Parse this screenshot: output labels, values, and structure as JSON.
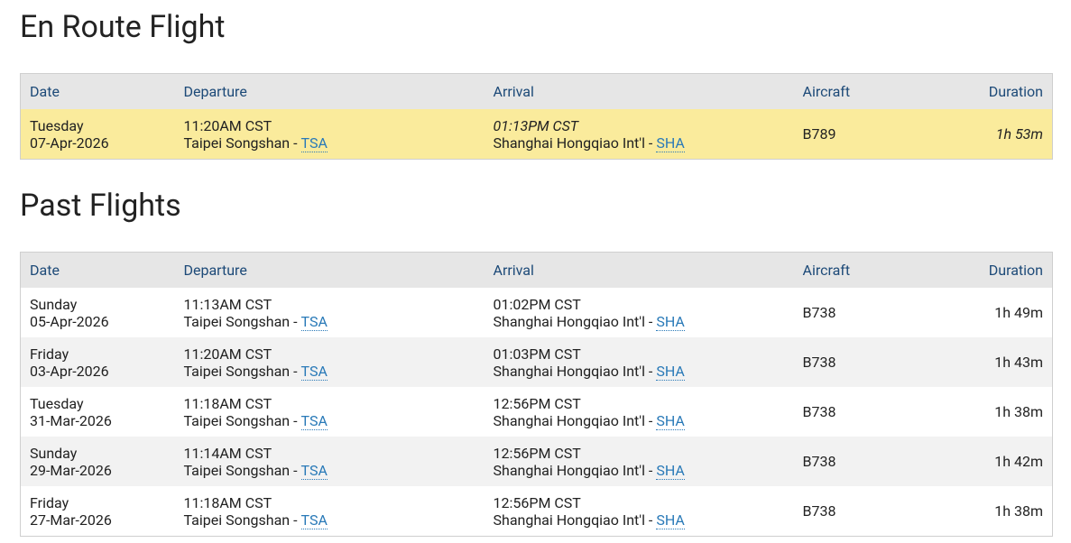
{
  "en_route": {
    "title": "En Route Flight",
    "columns": [
      "Date",
      "Departure",
      "Arrival",
      "Aircraft",
      "Duration"
    ],
    "rows": [
      {
        "day": "Tuesday",
        "date": "07-Apr-2026",
        "dep_time": "11:20AM CST",
        "dep_airport": "Taipei Songshan -",
        "dep_code": "TSA",
        "arr_time": "01:13PM CST",
        "arr_airport": "Shanghai Hongqiao Int'l -",
        "arr_code": "SHA",
        "aircraft": "B789",
        "duration": "1h 53m"
      }
    ]
  },
  "past": {
    "title": "Past Flights",
    "columns": [
      "Date",
      "Departure",
      "Arrival",
      "Aircraft",
      "Duration"
    ],
    "rows": [
      {
        "day": "Sunday",
        "date": "05-Apr-2026",
        "dep_time": "11:13AM CST",
        "dep_airport": "Taipei Songshan -",
        "dep_code": "TSA",
        "arr_time": "01:02PM CST",
        "arr_airport": "Shanghai Hongqiao Int'l -",
        "arr_code": "SHA",
        "aircraft": "B738",
        "duration": "1h 49m"
      },
      {
        "day": "Friday",
        "date": "03-Apr-2026",
        "dep_time": "11:20AM CST",
        "dep_airport": "Taipei Songshan -",
        "dep_code": "TSA",
        "arr_time": "01:03PM CST",
        "arr_airport": "Shanghai Hongqiao Int'l -",
        "arr_code": "SHA",
        "aircraft": "B738",
        "duration": "1h 43m"
      },
      {
        "day": "Tuesday",
        "date": "31-Mar-2026",
        "dep_time": "11:18AM CST",
        "dep_airport": "Taipei Songshan -",
        "dep_code": "TSA",
        "arr_time": "12:56PM CST",
        "arr_airport": "Shanghai Hongqiao Int'l -",
        "arr_code": "SHA",
        "aircraft": "B738",
        "duration": "1h 38m"
      },
      {
        "day": "Sunday",
        "date": "29-Mar-2026",
        "dep_time": "11:14AM CST",
        "dep_airport": "Taipei Songshan -",
        "dep_code": "TSA",
        "arr_time": "12:56PM CST",
        "arr_airport": "Shanghai Hongqiao Int'l -",
        "arr_code": "SHA",
        "aircraft": "B738",
        "duration": "1h 42m"
      },
      {
        "day": "Friday",
        "date": "27-Mar-2026",
        "dep_time": "11:18AM CST",
        "dep_airport": "Taipei Songshan -",
        "dep_code": "TSA",
        "arr_time": "12:56PM CST",
        "arr_airport": "Shanghai Hongqiao Int'l -",
        "arr_code": "SHA",
        "aircraft": "B738",
        "duration": "1h 38m"
      }
    ]
  }
}
